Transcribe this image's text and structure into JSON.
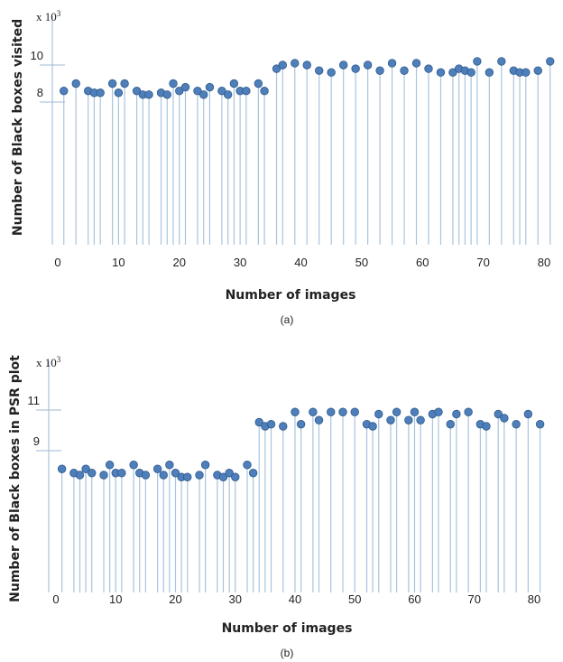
{
  "chart_data": [
    {
      "type": "stem",
      "panel": "a",
      "caption": "(a)",
      "xlabel": "Number of images",
      "ylabel": "Number of Black boxes visited",
      "multiplier": "x 10",
      "multiplier_exp": "3",
      "xticks": [
        0,
        10,
        20,
        30,
        40,
        50,
        60,
        70,
        80
      ],
      "yticks": [
        8,
        10
      ],
      "y_scale_note": "stems start at chart bottom (y = 2)",
      "x": [
        1,
        3,
        5,
        6,
        7,
        9,
        10,
        11,
        13,
        14,
        15,
        17,
        18,
        19,
        20,
        21,
        23,
        24,
        25,
        27,
        28,
        29,
        30,
        31,
        33,
        34,
        36,
        37,
        39,
        41,
        43,
        45,
        47,
        49,
        51,
        53,
        55,
        57,
        59,
        61,
        63,
        65,
        66,
        67,
        68,
        69,
        71,
        73,
        75,
        76,
        77,
        79,
        81
      ],
      "y": [
        8.6,
        9.0,
        8.6,
        8.5,
        8.5,
        9.0,
        8.5,
        9.0,
        8.6,
        8.4,
        8.4,
        8.5,
        8.4,
        9.0,
        8.6,
        8.8,
        8.6,
        8.4,
        8.8,
        8.6,
        8.4,
        9.0,
        8.6,
        8.6,
        9.0,
        8.6,
        9.8,
        10.0,
        10.1,
        10.0,
        9.7,
        9.6,
        10.0,
        9.8,
        10.0,
        9.7,
        10.1,
        9.7,
        10.1,
        9.8,
        9.6,
        9.6,
        9.8,
        9.7,
        9.6,
        10.2,
        9.6,
        10.2,
        9.7,
        9.6,
        9.6,
        9.7,
        10.2
      ]
    },
    {
      "type": "stem",
      "panel": "b",
      "caption": "(b)",
      "xlabel": "Number of images",
      "ylabel": "Number of Black boxes  in PSR plot",
      "multiplier": "x 10",
      "multiplier_exp": "3",
      "xticks": [
        0,
        10,
        20,
        30,
        40,
        50,
        60,
        70,
        80
      ],
      "yticks": [
        9,
        11
      ],
      "x": [
        1,
        3,
        4,
        5,
        6,
        8,
        9,
        10,
        11,
        13,
        14,
        15,
        17,
        18,
        19,
        20,
        21,
        22,
        24,
        25,
        27,
        28,
        29,
        30,
        32,
        33,
        34,
        35,
        36,
        38,
        40,
        41,
        43,
        44,
        46,
        48,
        50,
        52,
        53,
        54,
        56,
        57,
        59,
        60,
        61,
        63,
        64,
        66,
        67,
        69,
        71,
        72,
        74,
        75,
        77,
        79,
        81
      ],
      "y": [
        8.1,
        7.9,
        7.8,
        8.1,
        7.9,
        7.8,
        8.3,
        7.9,
        7.9,
        8.3,
        7.9,
        7.8,
        8.1,
        7.8,
        8.3,
        7.9,
        7.7,
        7.7,
        7.8,
        8.3,
        7.8,
        7.7,
        7.9,
        7.7,
        8.3,
        7.9,
        10.4,
        10.2,
        10.3,
        10.2,
        10.9,
        10.3,
        10.9,
        10.5,
        10.9,
        10.9,
        10.9,
        10.3,
        10.2,
        10.8,
        10.5,
        10.9,
        10.5,
        10.9,
        10.5,
        10.8,
        10.9,
        10.3,
        10.8,
        10.9,
        10.3,
        10.2,
        10.8,
        10.6,
        10.3,
        10.8,
        10.3
      ]
    }
  ],
  "colors": {
    "stem": "#a9c4dd",
    "marker_fill": "#4f7fba",
    "marker_stroke": "#2e5a8c",
    "axis": "#9db8d3"
  }
}
